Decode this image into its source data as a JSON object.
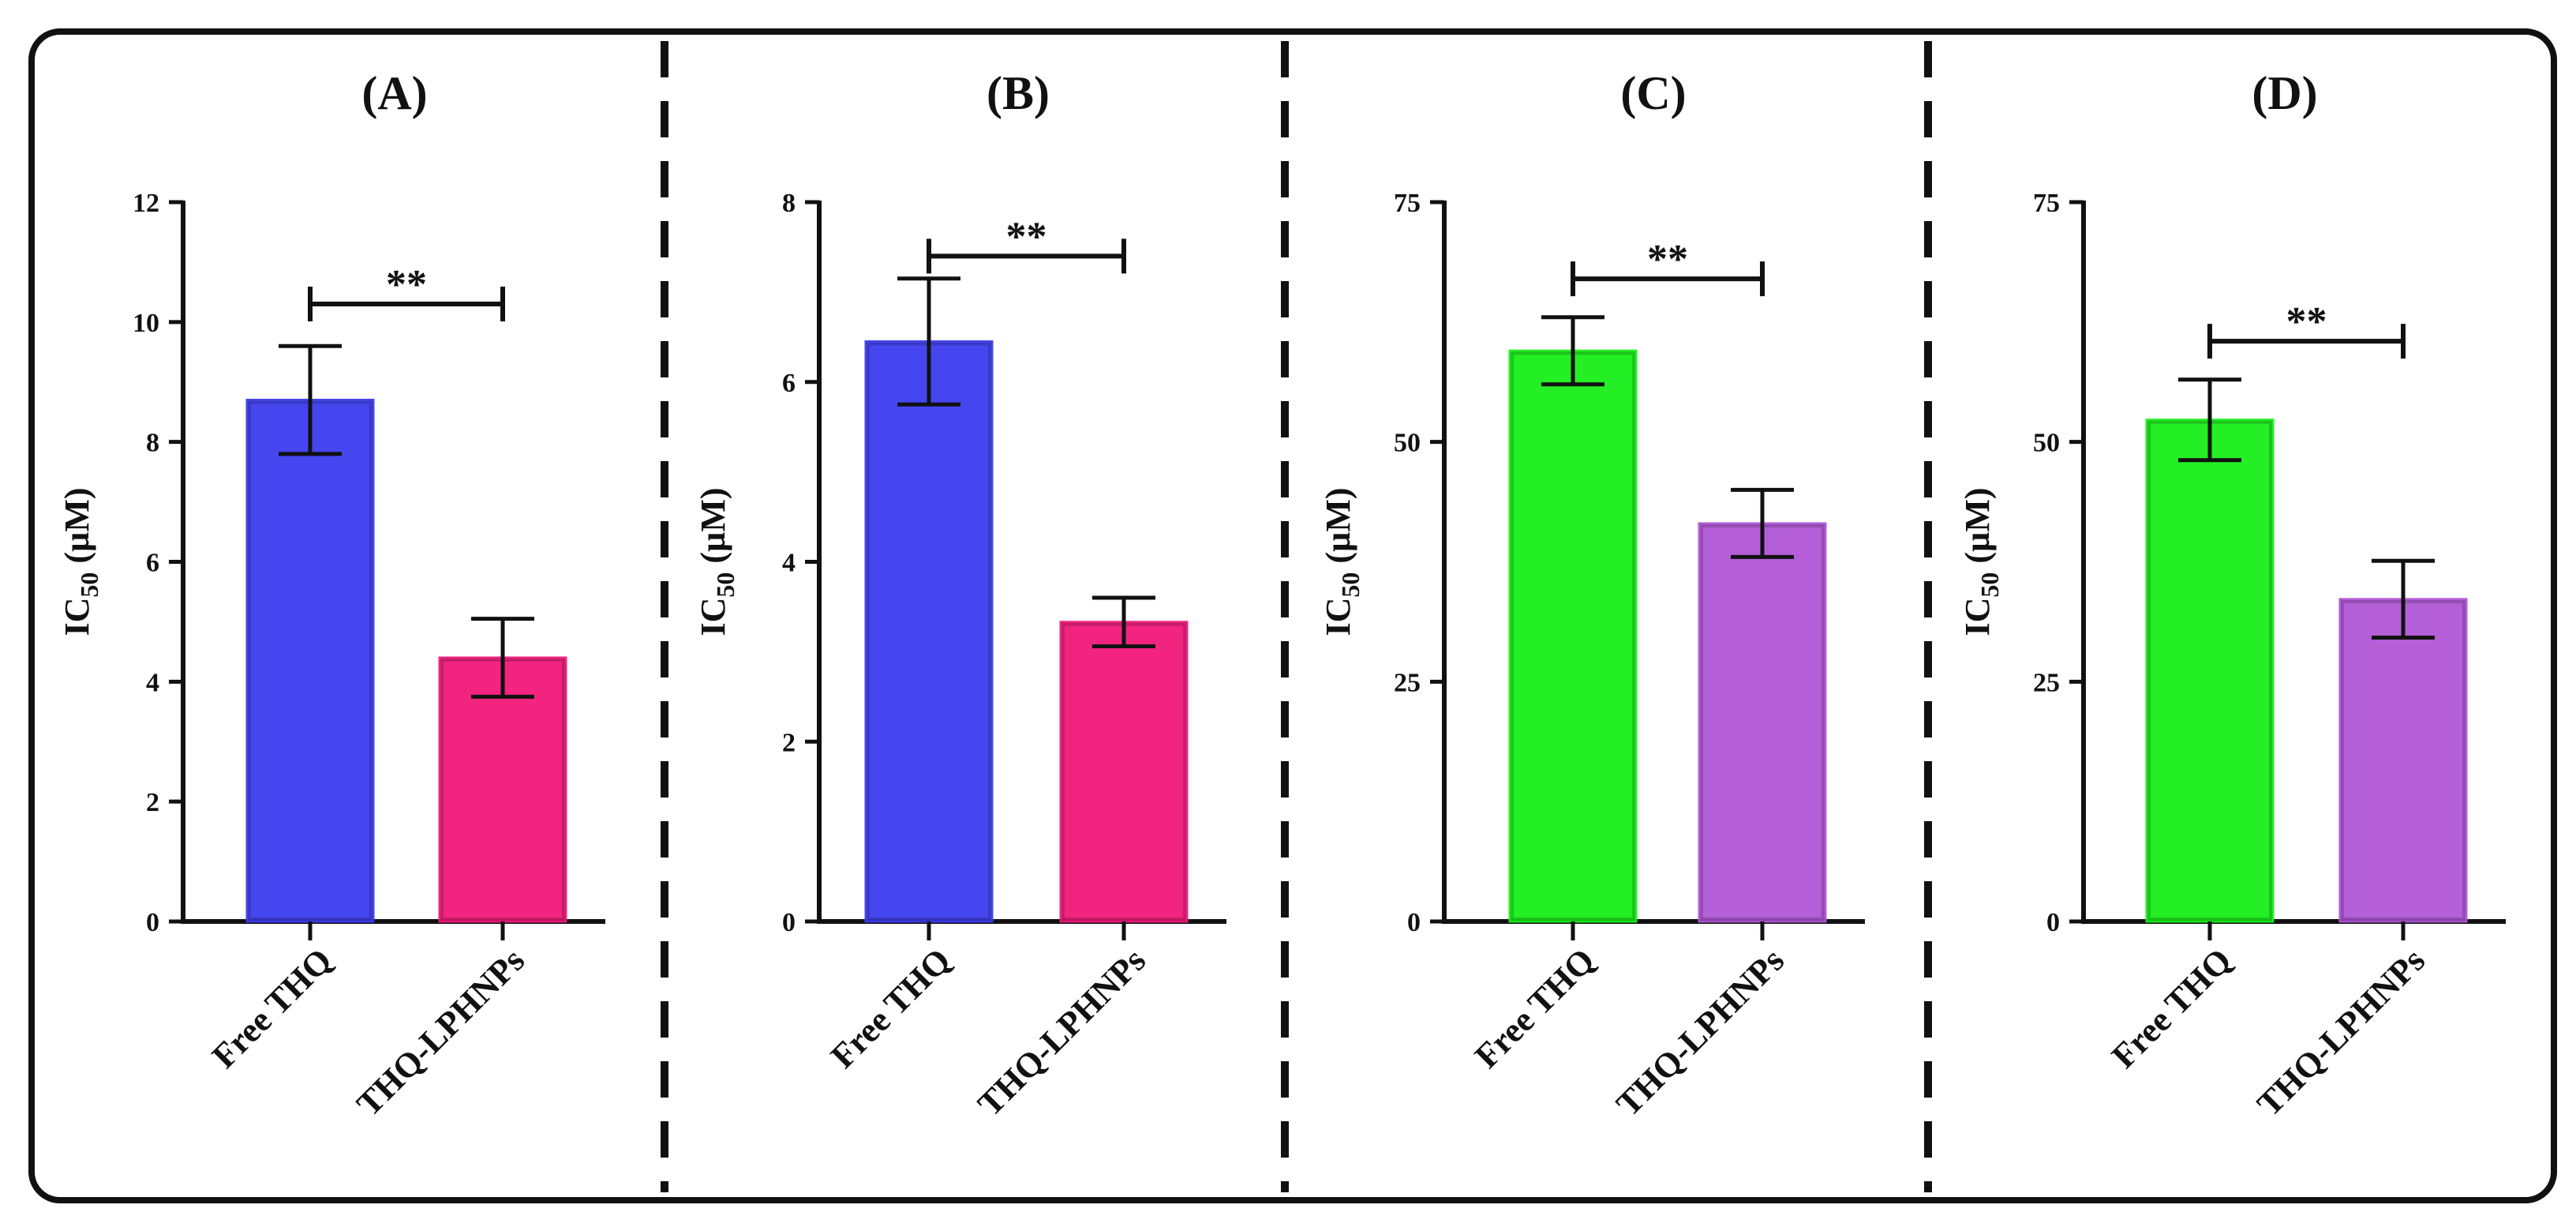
{
  "figure": {
    "frame_color": "#111111",
    "divider_color": "#111111"
  },
  "chart_data": [
    {
      "type": "bar",
      "panel": "(A)",
      "title": "(A)",
      "categories": [
        "Free THQ",
        "THQ-LPHNPs"
      ],
      "values": [
        8.7,
        4.4
      ],
      "errors": [
        0.9,
        0.65
      ],
      "colors": [
        "#3d3df0",
        "#f2197a"
      ],
      "ylabel_main": "IC",
      "ylabel_sub": "50",
      "ylabel_unit": " (µM)",
      "ylim": [
        0,
        12
      ],
      "yticks": [
        "0",
        "2",
        "4",
        "6",
        "8",
        "10",
        "12"
      ],
      "ytick_values": [
        0,
        2,
        4,
        6,
        8,
        10,
        12
      ],
      "significance": "**",
      "bracket_value": 10.3
    },
    {
      "type": "bar",
      "panel": "(B)",
      "title": "(B)",
      "categories": [
        "Free THQ",
        "THQ-LPHNPs"
      ],
      "values": [
        6.45,
        3.33
      ],
      "errors": [
        0.7,
        0.27
      ],
      "colors": [
        "#3d3df0",
        "#f2197a"
      ],
      "ylabel_main": "IC",
      "ylabel_sub": "50",
      "ylabel_unit": " (µM)",
      "ylim": [
        0,
        8
      ],
      "yticks": [
        "0",
        "2",
        "4",
        "6",
        "8"
      ],
      "ytick_values": [
        0,
        2,
        4,
        6,
        8
      ],
      "significance": "**",
      "bracket_value": 7.4
    },
    {
      "type": "bar",
      "panel": "(C)",
      "title": "(C)",
      "categories": [
        "Free THQ",
        "THQ-LPHNPs"
      ],
      "values": [
        59.5,
        41.5
      ],
      "errors": [
        3.5,
        3.5
      ],
      "colors": [
        "#19ef19",
        "#b056d6"
      ],
      "ylabel_main": "IC",
      "ylabel_sub": "50",
      "ylabel_unit": " (µM)",
      "ylim": [
        0,
        75
      ],
      "yticks": [
        "0",
        "25",
        "50",
        "75"
      ],
      "ytick_values": [
        0,
        25,
        50,
        75
      ],
      "significance": "**",
      "bracket_value": 67
    },
    {
      "type": "bar",
      "panel": "(D)",
      "title": "(D)",
      "categories": [
        "Free THQ",
        "THQ-LPHNPs"
      ],
      "values": [
        52.3,
        33.6
      ],
      "errors": [
        4.2,
        4.0
      ],
      "colors": [
        "#19ef19",
        "#b056d6"
      ],
      "ylabel_main": "IC",
      "ylabel_sub": "50",
      "ylabel_unit": " (µM)",
      "ylim": [
        0,
        75
      ],
      "yticks": [
        "0",
        "25",
        "50",
        "75"
      ],
      "ytick_values": [
        0,
        25,
        50,
        75
      ],
      "significance": "**",
      "bracket_value": 60.5
    }
  ]
}
